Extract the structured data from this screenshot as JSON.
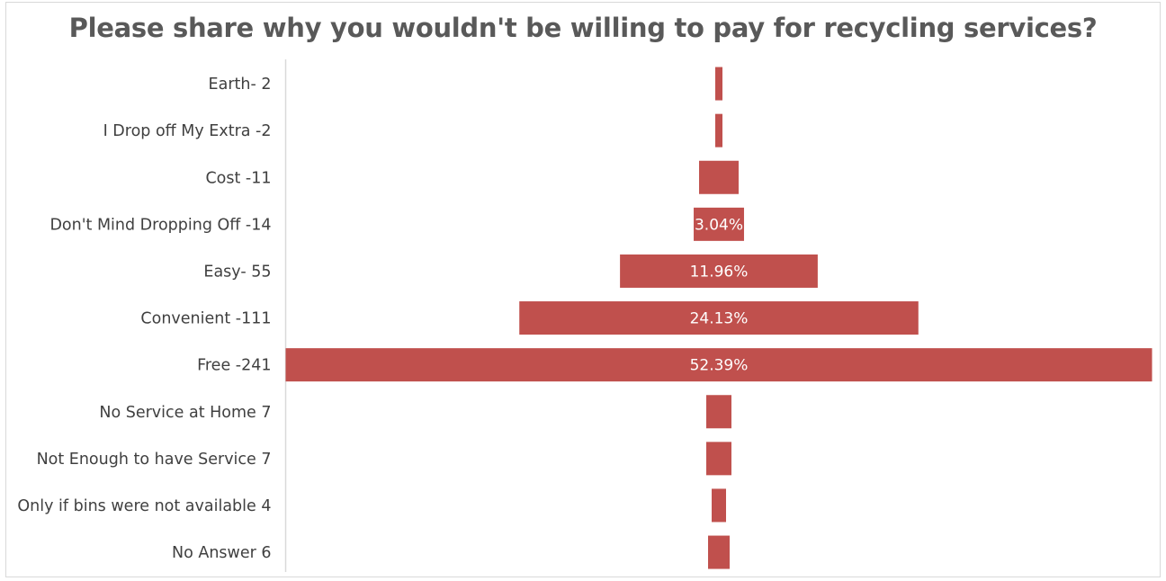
{
  "chart_data": {
    "type": "bar",
    "subtype": "funnel",
    "orientation": "horizontal",
    "title": "Please share why you wouldn't be willing to pay for recycling services?",
    "categories": [
      "Earth- 2",
      "I Drop off My Extra -2",
      "Cost -11",
      "Don't Mind Dropping Off -14",
      "Easy- 55",
      "Convenient -111",
      "Free -241",
      "No Service at Home 7",
      "Not Enough to have Service 7",
      "Only if bins were not available 4",
      "No Answer 6"
    ],
    "values": [
      2,
      2,
      11,
      14,
      55,
      111,
      241,
      7,
      7,
      4,
      6
    ],
    "data_labels": [
      "",
      "",
      "",
      "3.04%",
      "11.96%",
      "24.13%",
      "52.39%",
      "",
      "",
      "",
      ""
    ],
    "bar_color": "#c0504d",
    "label_color": "#ffffff",
    "axis_color": "#d9d9d9",
    "text_color": "#404040",
    "title_color": "#595959",
    "grid": false,
    "legend": "none"
  }
}
